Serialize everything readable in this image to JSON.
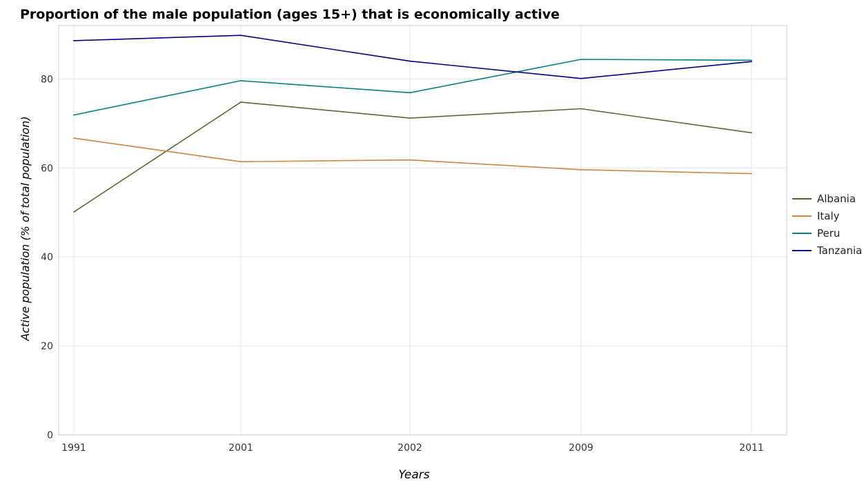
{
  "chart_data": {
    "type": "line",
    "title": "Proportion of the male population (ages 15+) that is economically active",
    "xlabel": "Years",
    "ylabel": "Active population (% of total population)",
    "categories": [
      "1991",
      "2001",
      "2002",
      "2009",
      "2011"
    ],
    "ylim": [
      0,
      92
    ],
    "yticks": [
      0,
      20,
      40,
      60,
      80
    ],
    "grid": true,
    "legend_position": "right",
    "series": [
      {
        "name": "Albania",
        "color": "#556b2f",
        "values": [
          50.1,
          74.8,
          71.2,
          73.3,
          67.9
        ]
      },
      {
        "name": "Italy",
        "color": "#cd853f",
        "values": [
          66.7,
          61.4,
          61.8,
          59.6,
          58.7
        ]
      },
      {
        "name": "Peru",
        "color": "#008080",
        "values": [
          71.9,
          79.6,
          76.9,
          84.4,
          84.2
        ]
      },
      {
        "name": "Tanzania",
        "color": "#00008b",
        "values": [
          88.6,
          89.8,
          84.0,
          80.1,
          83.9
        ]
      }
    ]
  }
}
